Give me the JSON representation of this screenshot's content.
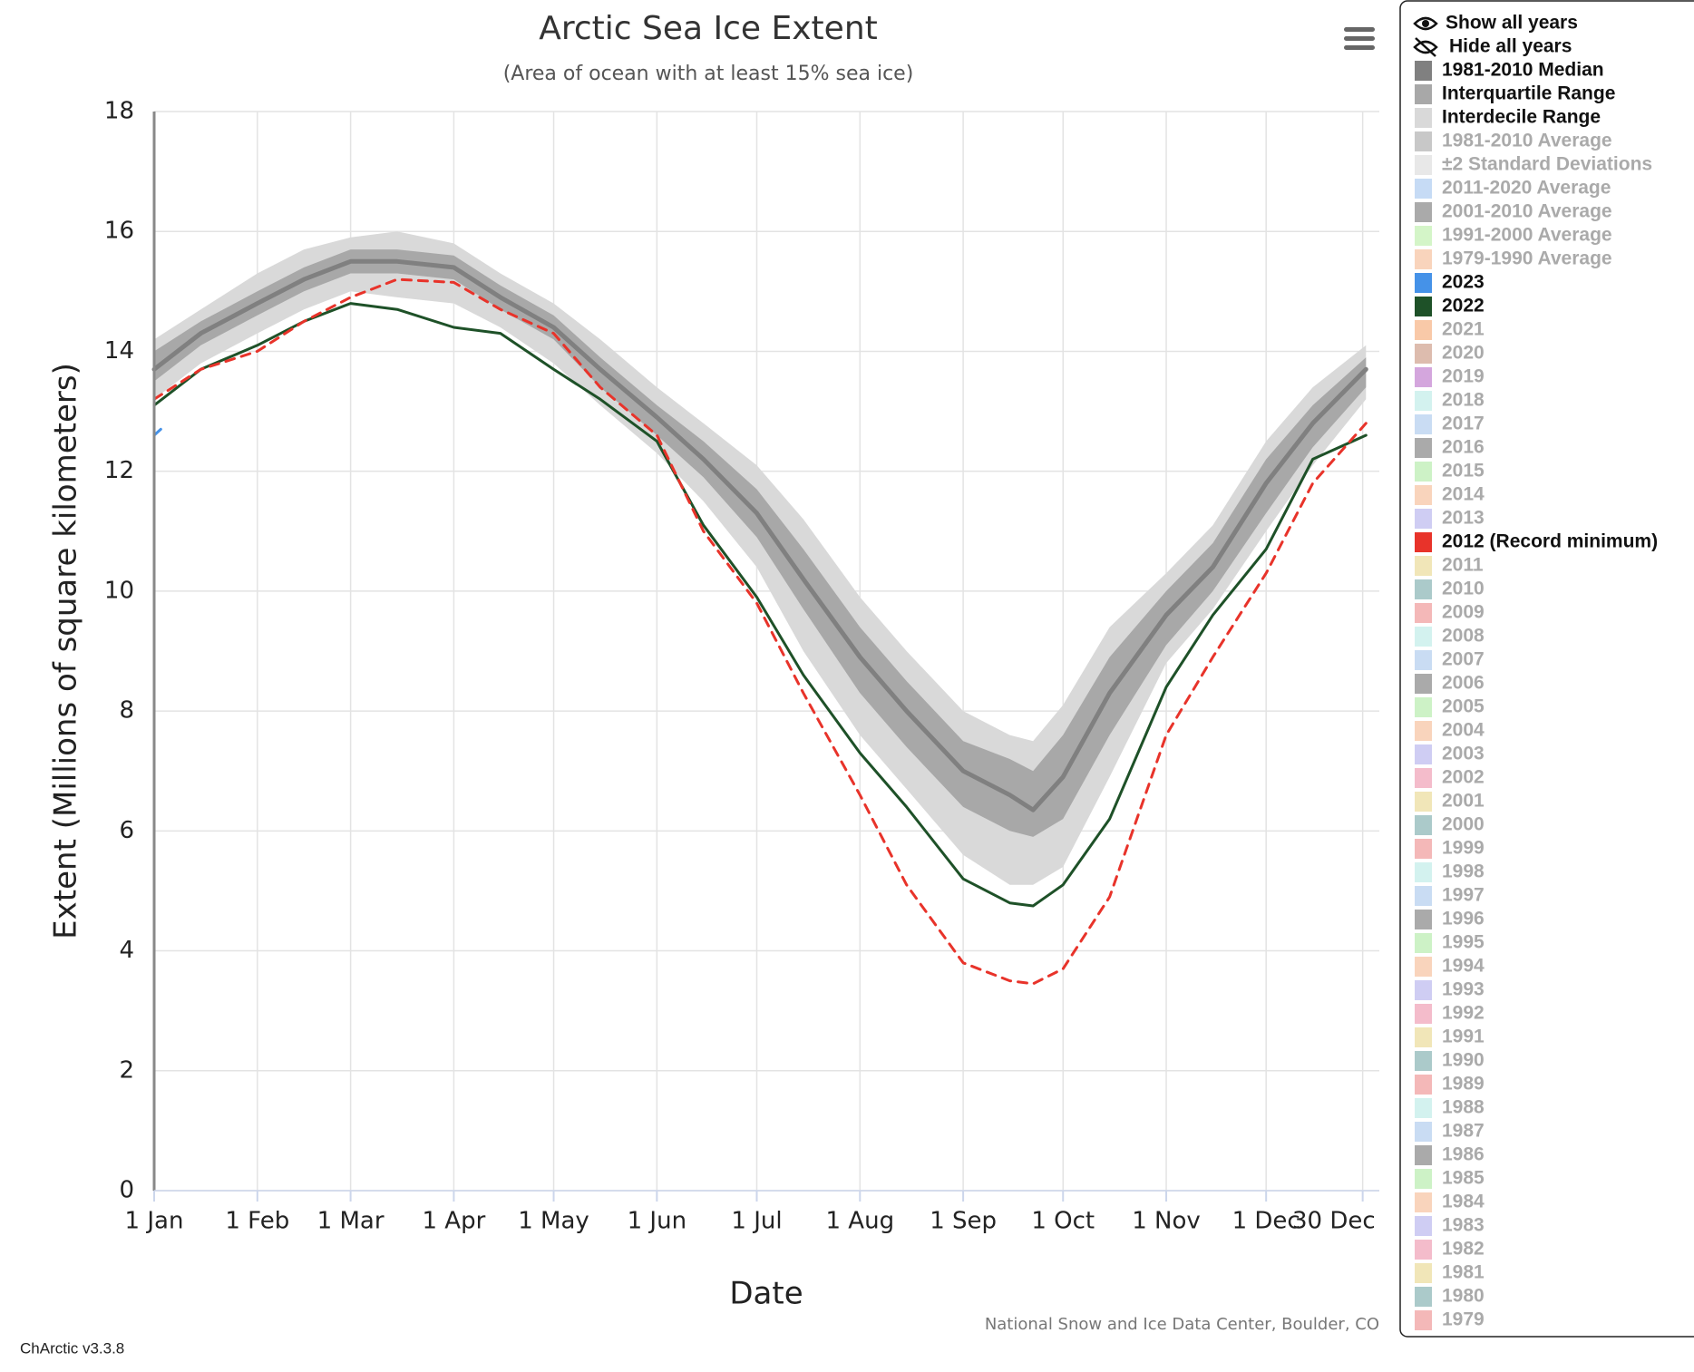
{
  "chart_data": {
    "type": "line",
    "title": "Arctic Sea Ice Extent",
    "subtitle": "(Area of ocean with at least 15% sea ice)",
    "x_label": "Date",
    "y_label": "Extent (Millions of square kilometers)",
    "credit": "National Snow and Ice Data Center, Boulder, CO",
    "version": "ChArctic v3.3.8",
    "show_all": "Show all years",
    "hide_all": "Hide all years",
    "grid": true,
    "xlim": [
      1,
      369
    ],
    "ylim": [
      0,
      18
    ],
    "yticks": [
      0,
      2,
      4,
      6,
      8,
      10,
      12,
      14,
      16,
      18
    ],
    "xticks": [
      {
        "value": 1,
        "label": "1 Jan"
      },
      {
        "value": 32,
        "label": "1 Feb"
      },
      {
        "value": 60,
        "label": "1 Mar"
      },
      {
        "value": 91,
        "label": "1 Apr"
      },
      {
        "value": 121,
        "label": "1 May"
      },
      {
        "value": 152,
        "label": "1 Jun"
      },
      {
        "value": 182,
        "label": "1 Jul"
      },
      {
        "value": 213,
        "label": "1 Aug"
      },
      {
        "value": 244,
        "label": "1 Sep"
      },
      {
        "value": 274,
        "label": "1 Oct"
      },
      {
        "value": 305,
        "label": "1 Nov"
      },
      {
        "value": 335,
        "label": "1 Dec"
      },
      {
        "value": 364,
        "label": "30 Dec"
      }
    ],
    "x": [
      1,
      15,
      32,
      46,
      60,
      74,
      91,
      105,
      121,
      135,
      152,
      166,
      182,
      196,
      213,
      227,
      244,
      258,
      265,
      274,
      288,
      305,
      319,
      335,
      349,
      365
    ],
    "series": [
      {
        "name": "1981-2010 Median",
        "color": "#808080",
        "visible": true,
        "kind": "line",
        "width": 5,
        "values": [
          13.7,
          14.3,
          14.8,
          15.2,
          15.5,
          15.5,
          15.4,
          14.9,
          14.4,
          13.7,
          12.9,
          12.2,
          11.3,
          10.2,
          8.9,
          8.0,
          7.0,
          6.6,
          6.35,
          6.9,
          8.3,
          9.6,
          10.4,
          11.8,
          12.8,
          13.7
        ]
      },
      {
        "name": "Interquartile Range",
        "color": "#a8a8a8",
        "visible": true,
        "kind": "band",
        "lower": [
          13.5,
          14.1,
          14.6,
          15.0,
          15.3,
          15.3,
          15.2,
          14.7,
          14.2,
          13.4,
          12.6,
          11.9,
          10.9,
          9.7,
          8.3,
          7.4,
          6.4,
          6.0,
          5.9,
          6.2,
          7.6,
          9.1,
          10.0,
          11.3,
          12.4,
          13.4
        ],
        "upper": [
          14.0,
          14.5,
          15.0,
          15.4,
          15.7,
          15.7,
          15.6,
          15.1,
          14.6,
          13.9,
          13.1,
          12.5,
          11.7,
          10.7,
          9.4,
          8.5,
          7.5,
          7.2,
          7.0,
          7.6,
          8.9,
          10.0,
          10.8,
          12.2,
          13.1,
          13.9
        ]
      },
      {
        "name": "Interdecile Range",
        "color": "#d9d9d9",
        "visible": true,
        "kind": "band",
        "lower": [
          13.2,
          13.8,
          14.3,
          14.7,
          15.0,
          14.9,
          14.8,
          14.4,
          13.8,
          13.1,
          12.3,
          11.5,
          10.4,
          9.0,
          7.6,
          6.7,
          5.6,
          5.1,
          5.1,
          5.4,
          6.9,
          8.8,
          9.7,
          11.0,
          12.1,
          13.2
        ],
        "upper": [
          14.2,
          14.7,
          15.3,
          15.7,
          15.9,
          16.0,
          15.8,
          15.3,
          14.8,
          14.2,
          13.4,
          12.8,
          12.1,
          11.2,
          9.9,
          9.0,
          8.0,
          7.6,
          7.5,
          8.1,
          9.4,
          10.3,
          11.1,
          12.5,
          13.4,
          14.1
        ]
      },
      {
        "name": "1981-2010 Average",
        "color": "#c8c8c8",
        "visible": false
      },
      {
        "name": "±2 Standard Deviations",
        "color": "#e8e8e8",
        "visible": false
      },
      {
        "name": "2011-2020 Average",
        "color": "#c6dbf5",
        "visible": false
      },
      {
        "name": "2001-2010 Average",
        "color": "#aaaaaa",
        "visible": false
      },
      {
        "name": "1991-2000 Average",
        "color": "#d4f5c8",
        "visible": false
      },
      {
        "name": "1979-1990 Average",
        "color": "#f9d4bc",
        "visible": false
      },
      {
        "name": "2023",
        "color": "#4592e8",
        "visible": true,
        "kind": "line",
        "width": 3,
        "x": [
          1,
          3
        ],
        "values": [
          12.6,
          12.7
        ]
      },
      {
        "name": "2022",
        "color": "#1e5128",
        "visible": true,
        "kind": "line",
        "width": 3,
        "values": [
          13.1,
          13.7,
          14.1,
          14.5,
          14.8,
          14.7,
          14.4,
          14.3,
          13.7,
          13.2,
          12.5,
          11.1,
          9.9,
          8.6,
          7.3,
          6.4,
          5.2,
          4.8,
          4.75,
          5.1,
          6.2,
          8.4,
          9.6,
          10.7,
          12.2,
          12.6
        ]
      },
      {
        "name": "2021",
        "color": "#f9c9a8",
        "visible": false
      },
      {
        "name": "2020",
        "color": "#ddbcae",
        "visible": false
      },
      {
        "name": "2019",
        "color": "#d4a6dd",
        "visible": false
      },
      {
        "name": "2018",
        "color": "#d3f2ef",
        "visible": false
      },
      {
        "name": "2017",
        "color": "#c9dcf3",
        "visible": false
      },
      {
        "name": "2016",
        "color": "#aaaaaa",
        "visible": false
      },
      {
        "name": "2015",
        "color": "#cdf2c6",
        "visible": false
      },
      {
        "name": "2014",
        "color": "#f9d4bc",
        "visible": false
      },
      {
        "name": "2013",
        "color": "#cfcdf3",
        "visible": false
      },
      {
        "name": "2012 (Record minimum)",
        "color": "#e8332a",
        "visible": true,
        "kind": "line",
        "width": 3,
        "dash": true,
        "values": [
          13.2,
          13.7,
          14.0,
          14.5,
          14.9,
          15.2,
          15.15,
          14.7,
          14.3,
          13.4,
          12.6,
          11.0,
          9.8,
          8.3,
          6.6,
          5.1,
          3.8,
          3.5,
          3.45,
          3.7,
          4.9,
          7.6,
          8.9,
          10.3,
          11.8,
          12.8
        ]
      },
      {
        "name": "2011",
        "color": "#f1e6b8",
        "visible": false
      },
      {
        "name": "2010",
        "color": "#abcaca",
        "visible": false
      },
      {
        "name": "2009",
        "color": "#f4b8b8",
        "visible": false
      },
      {
        "name": "2008",
        "color": "#d3f2ef",
        "visible": false
      },
      {
        "name": "2007",
        "color": "#c9dcf3",
        "visible": false
      },
      {
        "name": "2006",
        "color": "#aaaaaa",
        "visible": false
      },
      {
        "name": "2005",
        "color": "#cdf2c6",
        "visible": false
      },
      {
        "name": "2004",
        "color": "#f9d4bc",
        "visible": false
      },
      {
        "name": "2003",
        "color": "#cfcdf3",
        "visible": false
      },
      {
        "name": "2002",
        "color": "#f4bccb",
        "visible": false
      },
      {
        "name": "2001",
        "color": "#f1e6b8",
        "visible": false
      },
      {
        "name": "2000",
        "color": "#abcaca",
        "visible": false
      },
      {
        "name": "1999",
        "color": "#f4b8b8",
        "visible": false
      },
      {
        "name": "1998",
        "color": "#d3f2ef",
        "visible": false
      },
      {
        "name": "1997",
        "color": "#c9dcf3",
        "visible": false
      },
      {
        "name": "1996",
        "color": "#aaaaaa",
        "visible": false
      },
      {
        "name": "1995",
        "color": "#cdf2c6",
        "visible": false
      },
      {
        "name": "1994",
        "color": "#f9d4bc",
        "visible": false
      },
      {
        "name": "1993",
        "color": "#cfcdf3",
        "visible": false
      },
      {
        "name": "1992",
        "color": "#f4bccb",
        "visible": false
      },
      {
        "name": "1991",
        "color": "#f1e6b8",
        "visible": false
      },
      {
        "name": "1990",
        "color": "#abcaca",
        "visible": false
      },
      {
        "name": "1989",
        "color": "#f4b8b8",
        "visible": false
      },
      {
        "name": "1988",
        "color": "#d3f2ef",
        "visible": false
      },
      {
        "name": "1987",
        "color": "#c9dcf3",
        "visible": false
      },
      {
        "name": "1986",
        "color": "#aaaaaa",
        "visible": false
      },
      {
        "name": "1985",
        "color": "#cdf2c6",
        "visible": false
      },
      {
        "name": "1984",
        "color": "#f9d4bc",
        "visible": false
      },
      {
        "name": "1983",
        "color": "#cfcdf3",
        "visible": false
      },
      {
        "name": "1982",
        "color": "#f4bccb",
        "visible": false
      },
      {
        "name": "1981",
        "color": "#f1e6b8",
        "visible": false
      },
      {
        "name": "1980",
        "color": "#abcaca",
        "visible": false
      },
      {
        "name": "1979",
        "color": "#f4b8b8",
        "visible": false
      }
    ]
  }
}
